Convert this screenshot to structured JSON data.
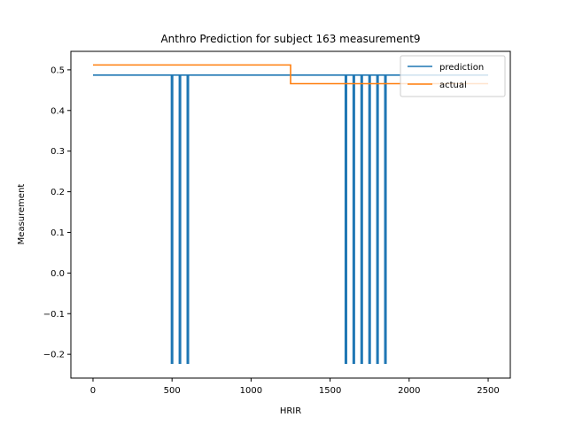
{
  "chart_data": {
    "type": "line",
    "title": "Anthro Prediction for subject 163 measurement9",
    "xlabel": "HRIR",
    "ylabel": "Measurement",
    "xlim": [
      -140,
      2640
    ],
    "ylim": [
      -0.2585,
      0.5455
    ],
    "xticks": [
      0,
      500,
      1000,
      1500,
      2000,
      2500
    ],
    "yticks": [
      -0.2,
      -0.1,
      0.0,
      0.1,
      0.2,
      0.3,
      0.4,
      0.5
    ],
    "ytick_labels": [
      "−0.2",
      "−0.1",
      "0.0",
      "0.1",
      "0.2",
      "0.3",
      "0.4",
      "0.5"
    ],
    "grid": false,
    "legend_position": "top-right",
    "series": [
      {
        "name": "prediction",
        "color": "#1f77b4",
        "baseline": 0.487,
        "dip_value": -0.222,
        "dip_width": 8,
        "dips": [
          500,
          550,
          600,
          1600,
          1650,
          1700,
          1750,
          1800,
          1850
        ],
        "x_range": [
          0,
          2500
        ]
      },
      {
        "name": "actual",
        "color": "#ff7f0e",
        "steps": [
          {
            "x_start": 0,
            "x_end": 1250,
            "y": 0.512
          },
          {
            "x_start": 1250,
            "x_end": 2500,
            "y": 0.466
          }
        ]
      }
    ]
  }
}
